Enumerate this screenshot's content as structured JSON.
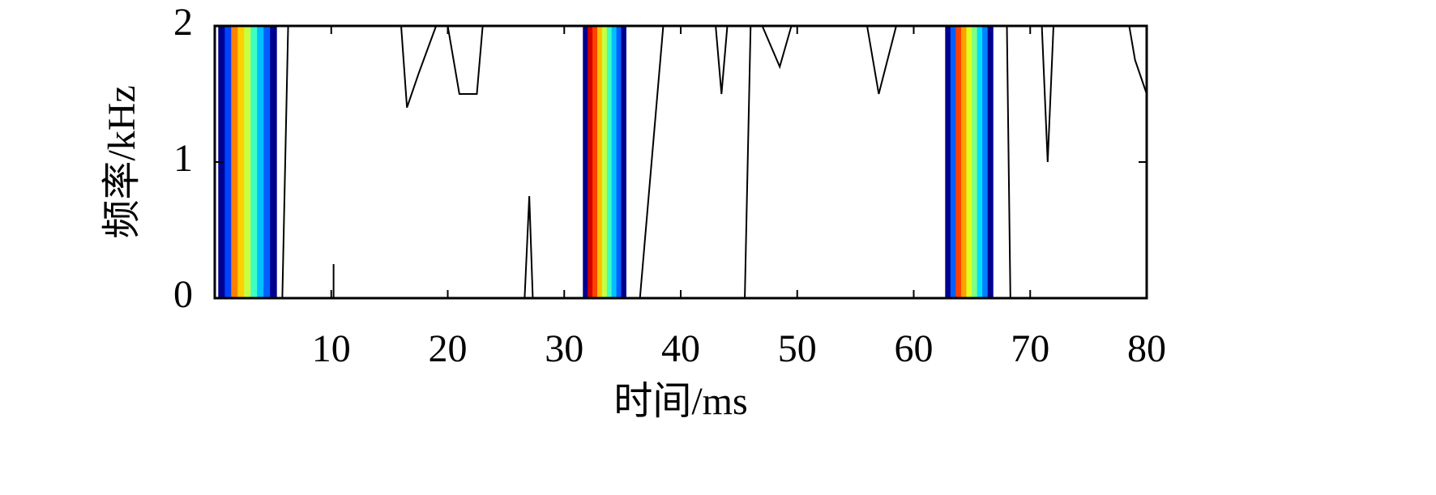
{
  "chart_data": {
    "type": "contour",
    "x_label": "时间/ms",
    "y_label": "频率/kHz",
    "xlim": [
      0,
      80
    ],
    "xticks": [
      10,
      20,
      30,
      40,
      50,
      60,
      70,
      80
    ],
    "ylim": [
      0,
      2
    ],
    "yticks": [
      0,
      1,
      2
    ],
    "pulses": [
      {
        "start": 0.3,
        "end": 5.3,
        "colors": [
          "#00008f",
          "#0040ff",
          "#ff8000",
          "#ffd000",
          "#c8ff40",
          "#40ffc0",
          "#00c0ff",
          "#0060ff",
          "#00008f"
        ]
      },
      {
        "start": 31.6,
        "end": 35.3,
        "colors": [
          "#00008f",
          "#d00000",
          "#ff4000",
          "#ffc000",
          "#c8ff40",
          "#40ffc0",
          "#00c0ff",
          "#0060ff",
          "#00008f"
        ]
      },
      {
        "start": 62.7,
        "end": 66.8,
        "colors": [
          "#00008f",
          "#0060ff",
          "#ff4000",
          "#ffa000",
          "#e0ff20",
          "#80ff80",
          "#00e0ff",
          "#0080ff",
          "#00008f"
        ]
      }
    ],
    "line_color": "#000000",
    "lines": [
      {
        "x": [
          5.8,
          6.3
        ],
        "y": [
          0,
          2
        ]
      },
      {
        "x": [
          10.2,
          10.2
        ],
        "y": [
          0,
          0.25
        ]
      },
      {
        "x": [
          16.0,
          16.5,
          17.5,
          19.0
        ],
        "y": [
          2,
          1.4,
          1.65,
          2
        ]
      },
      {
        "x": [
          20.0,
          21.0,
          22.5,
          23.0
        ],
        "y": [
          2,
          1.5,
          1.5,
          2
        ]
      },
      {
        "x": [
          26.6,
          27.0,
          27.3
        ],
        "y": [
          0,
          0.75,
          0
        ]
      },
      {
        "x": [
          36.5,
          37.5,
          38.5
        ],
        "y": [
          0,
          1.0,
          2
        ]
      },
      {
        "x": [
          43.0,
          43.5,
          44.0
        ],
        "y": [
          2,
          1.5,
          2
        ]
      },
      {
        "x": [
          45.5,
          46.0
        ],
        "y": [
          0,
          2
        ]
      },
      {
        "x": [
          47.0,
          48.5,
          49.5
        ],
        "y": [
          2,
          1.7,
          2
        ]
      },
      {
        "x": [
          56.0,
          57.0,
          58.5
        ],
        "y": [
          2,
          1.5,
          2
        ]
      },
      {
        "x": [
          68.3,
          68.0
        ],
        "y": [
          0,
          2
        ]
      },
      {
        "x": [
          71.0,
          71.5,
          72.0
        ],
        "y": [
          2,
          1.0,
          2
        ]
      },
      {
        "x": [
          78.5,
          79.0,
          80.0
        ],
        "y": [
          2,
          1.75,
          1.5
        ]
      }
    ]
  }
}
